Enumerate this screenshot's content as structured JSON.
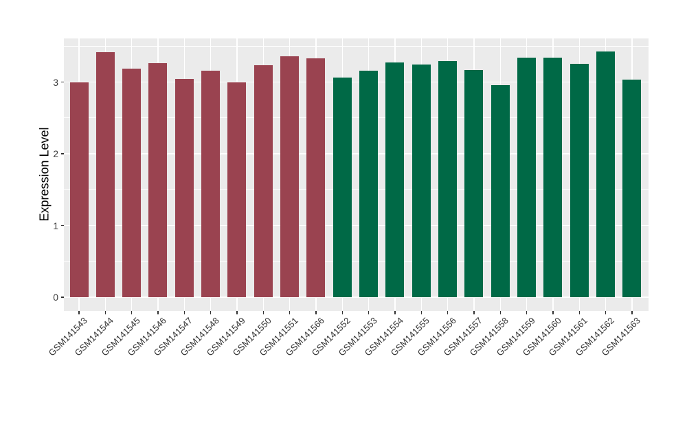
{
  "chart_data": {
    "type": "bar",
    "title": "",
    "xlabel": "",
    "ylabel": "Expression Level",
    "ylim": [
      0,
      3.6
    ],
    "yticks": [
      0,
      1,
      2,
      3
    ],
    "ytick_labels": [
      "0",
      "1",
      "2",
      "3"
    ],
    "yticks_minor": [
      0.5,
      1.5,
      2.5,
      3.5
    ],
    "grid": "on",
    "legend_position": "none",
    "panel_background_color": "#EBEBEB",
    "gridline_color": "#FFFFFF",
    "group_colors": {
      "red_group": "#9A4350",
      "green_group": "#006946"
    },
    "categories": [
      "GSM141543",
      "GSM141544",
      "GSM141545",
      "GSM141546",
      "GSM141547",
      "GSM141548",
      "GSM141549",
      "GSM141550",
      "GSM141551",
      "GSM141566",
      "GSM141552",
      "GSM141553",
      "GSM141554",
      "GSM141555",
      "GSM141556",
      "GSM141557",
      "GSM141558",
      "GSM141559",
      "GSM141560",
      "GSM141561",
      "GSM141562",
      "GSM141563"
    ],
    "values": [
      3.0,
      3.42,
      3.19,
      3.26,
      3.04,
      3.16,
      3.0,
      3.23,
      3.36,
      3.33,
      3.06,
      3.16,
      3.27,
      3.24,
      3.29,
      3.17,
      2.96,
      3.34,
      3.34,
      3.25,
      3.43,
      3.03
    ],
    "bars": [
      {
        "label": "GSM141543",
        "value": 3.0,
        "color": "#9A4350"
      },
      {
        "label": "GSM141544",
        "value": 3.42,
        "color": "#9A4350"
      },
      {
        "label": "GSM141545",
        "value": 3.19,
        "color": "#9A4350"
      },
      {
        "label": "GSM141546",
        "value": 3.26,
        "color": "#9A4350"
      },
      {
        "label": "GSM141547",
        "value": 3.04,
        "color": "#9A4350"
      },
      {
        "label": "GSM141548",
        "value": 3.16,
        "color": "#9A4350"
      },
      {
        "label": "GSM141549",
        "value": 3.0,
        "color": "#9A4350"
      },
      {
        "label": "GSM141550",
        "value": 3.23,
        "color": "#9A4350"
      },
      {
        "label": "GSM141551",
        "value": 3.36,
        "color": "#9A4350"
      },
      {
        "label": "GSM141566",
        "value": 3.33,
        "color": "#9A4350"
      },
      {
        "label": "GSM141552",
        "value": 3.06,
        "color": "#006946"
      },
      {
        "label": "GSM141553",
        "value": 3.16,
        "color": "#006946"
      },
      {
        "label": "GSM141554",
        "value": 3.27,
        "color": "#006946"
      },
      {
        "label": "GSM141555",
        "value": 3.24,
        "color": "#006946"
      },
      {
        "label": "GSM141556",
        "value": 3.29,
        "color": "#006946"
      },
      {
        "label": "GSM141557",
        "value": 3.17,
        "color": "#006946"
      },
      {
        "label": "GSM141558",
        "value": 2.96,
        "color": "#006946"
      },
      {
        "label": "GSM141559",
        "value": 3.34,
        "color": "#006946"
      },
      {
        "label": "GSM141560",
        "value": 3.34,
        "color": "#006946"
      },
      {
        "label": "GSM141561",
        "value": 3.25,
        "color": "#006946"
      },
      {
        "label": "GSM141562",
        "value": 3.43,
        "color": "#006946"
      },
      {
        "label": "GSM141563",
        "value": 3.03,
        "color": "#006946"
      }
    ]
  }
}
